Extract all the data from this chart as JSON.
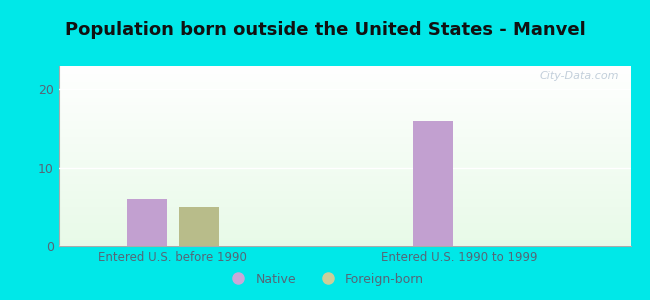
{
  "title": "Population born outside the United States - Manvel",
  "groups": [
    "Entered U.S. before 1990",
    "Entered U.S. 1990 to 1999"
  ],
  "series": {
    "Native": [
      6,
      16
    ],
    "Foreign-born": [
      5,
      0
    ]
  },
  "bar_colors": {
    "Native": "#c2a0d0",
    "Foreign-born": "#b8bc8a"
  },
  "legend_colors": {
    "Native": "#c9a8d8",
    "Foreign-born": "#ccce9a"
  },
  "ylim": [
    0,
    23
  ],
  "yticks": [
    0,
    10,
    20
  ],
  "background_outer": "#00e8e8",
  "background_inner": "#e0f0e0",
  "title_fontsize": 13,
  "legend_fontsize": 9,
  "bar_width": 0.28,
  "group_positions": [
    1.0,
    3.0
  ],
  "watermark": "City-Data.com"
}
